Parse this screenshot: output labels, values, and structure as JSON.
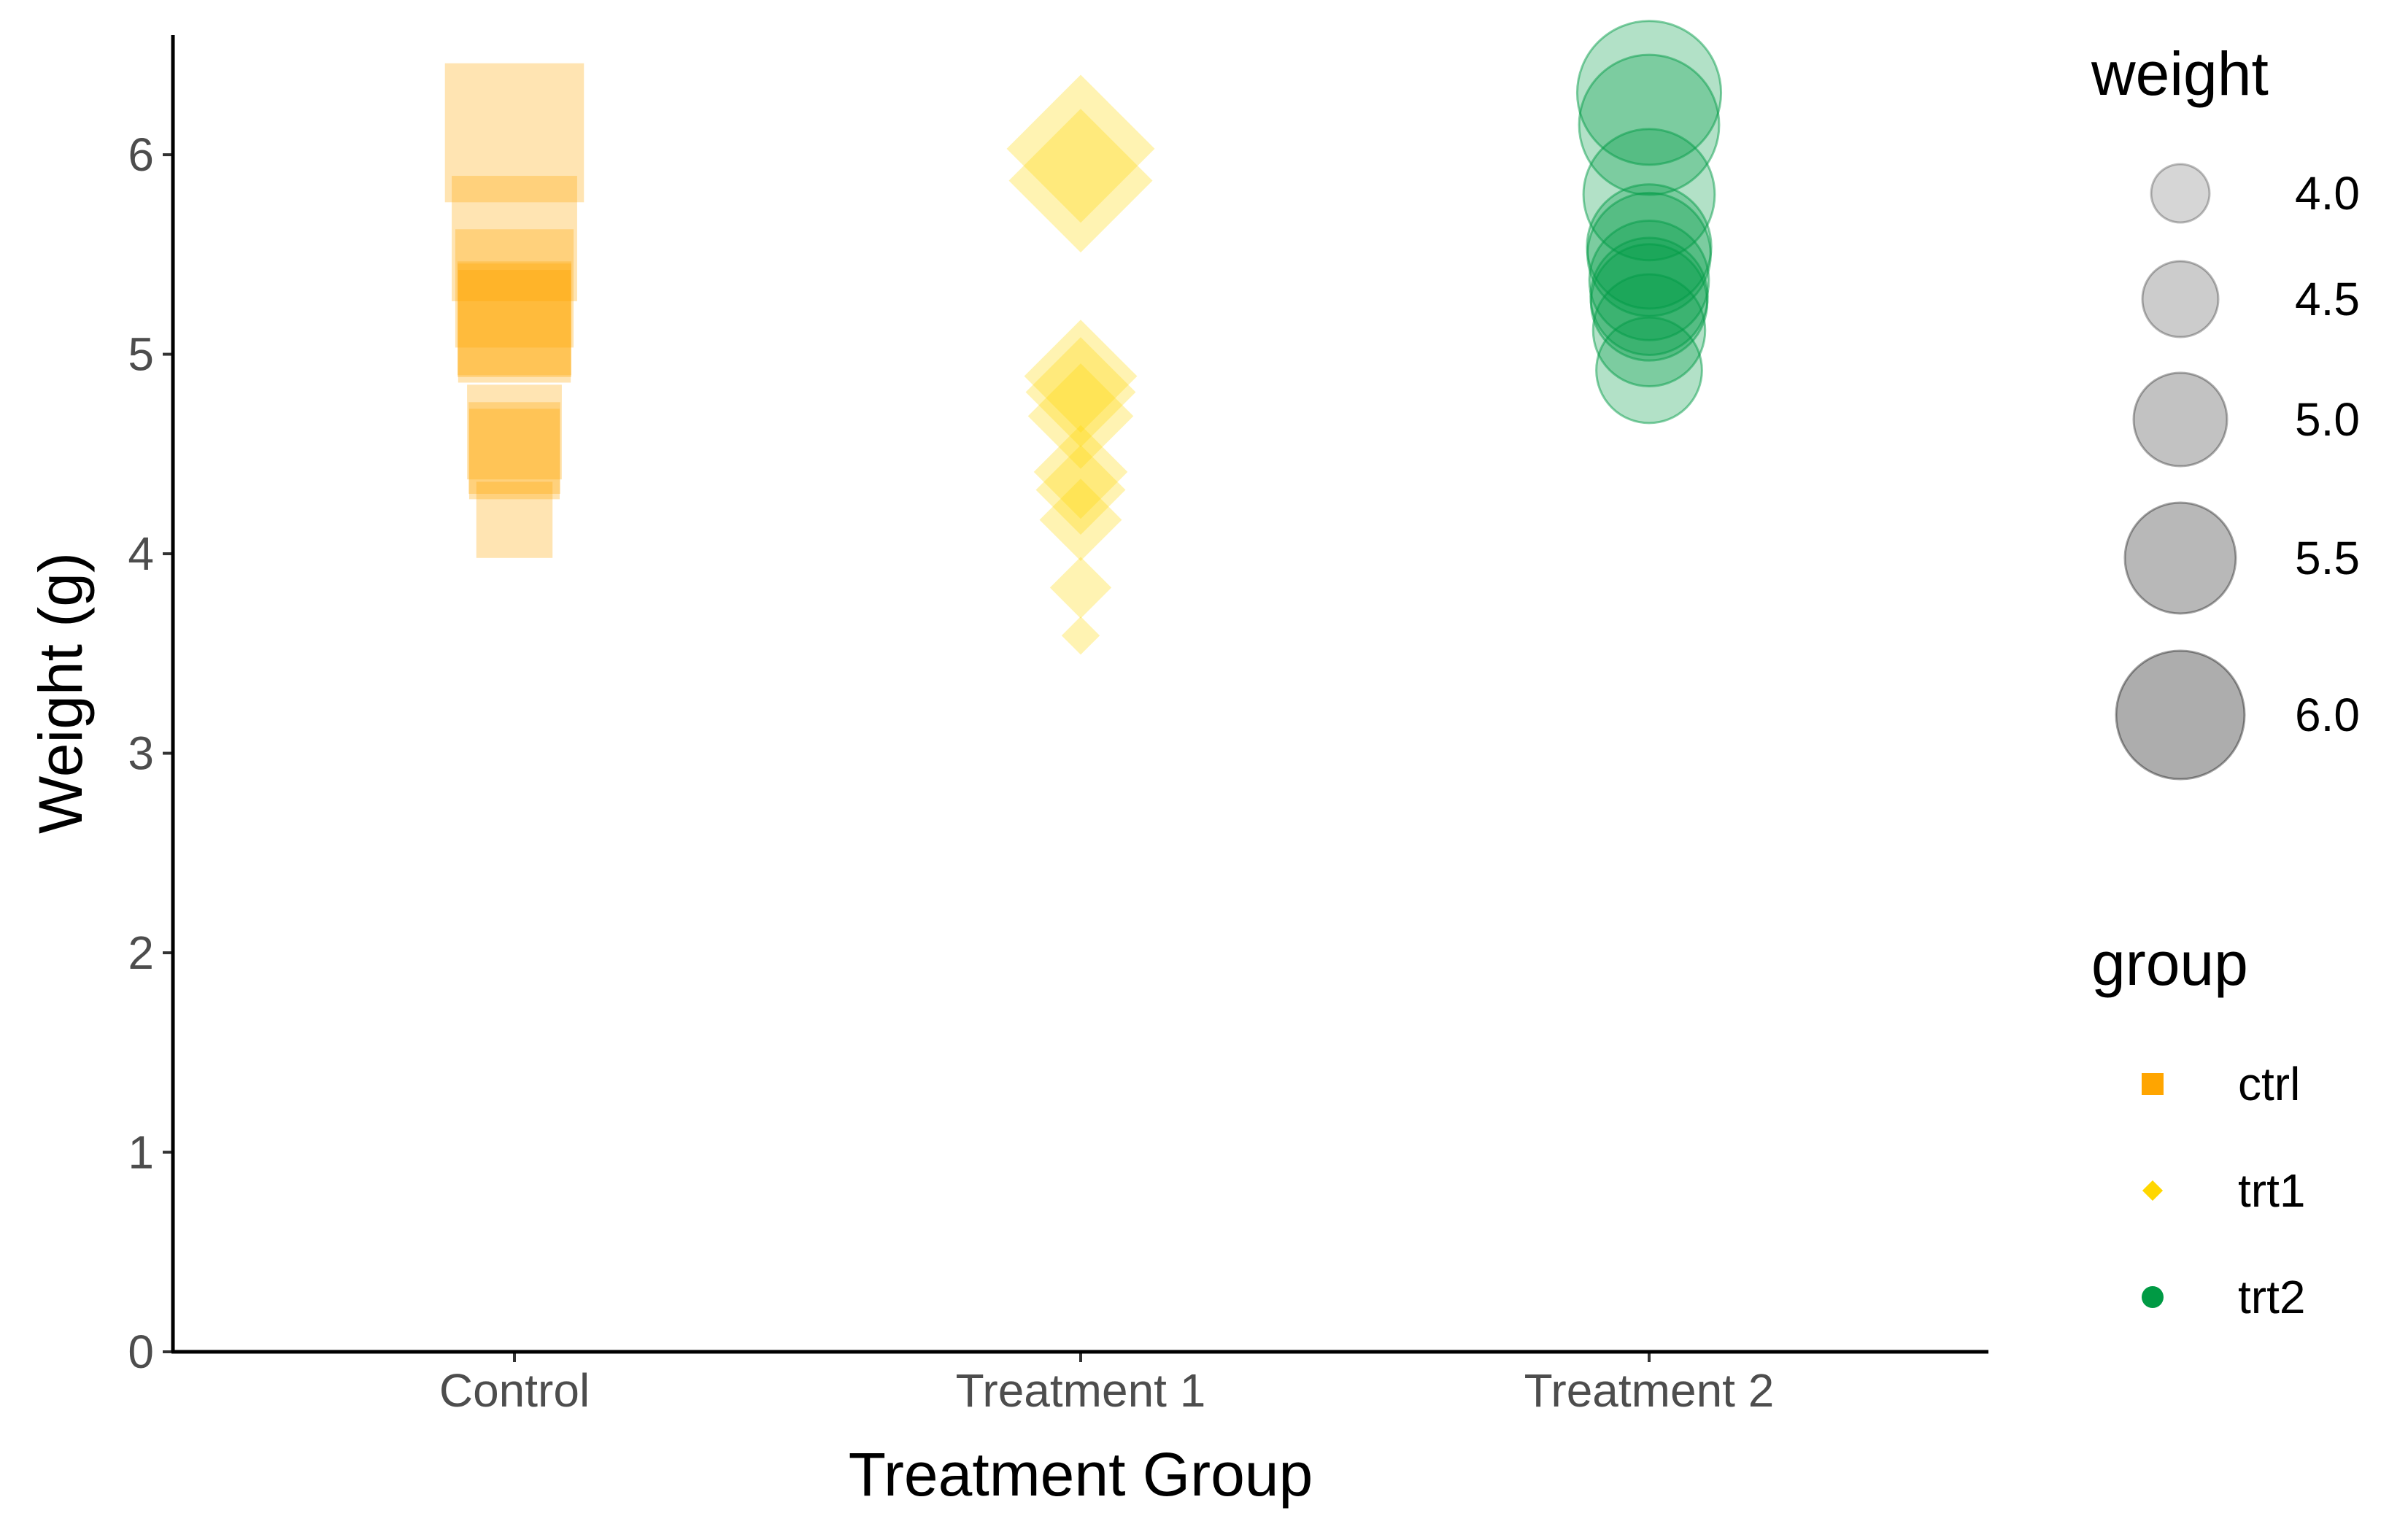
{
  "chart_data": {
    "type": "scatter",
    "title": "",
    "xlabel": "Treatment Group",
    "ylabel": "Weight (g)",
    "categories": [
      "Control",
      "Treatment 1",
      "Treatment 2"
    ],
    "ylim": [
      0,
      6.6
    ],
    "yticks": [
      "0",
      "1",
      "2",
      "3",
      "4",
      "5",
      "6"
    ],
    "grid": false,
    "point_alpha": 0.3,
    "series": [
      {
        "name": "ctrl",
        "category": "Control",
        "shape": "square",
        "color": "#FFA500",
        "values": [
          4.17,
          5.58,
          5.18,
          6.11,
          4.5,
          4.61,
          5.17,
          4.53,
          5.33,
          5.14
        ]
      },
      {
        "name": "trt1",
        "category": "Treatment 1",
        "shape": "diamond",
        "color": "#FFD700",
        "values": [
          4.81,
          4.17,
          4.41,
          3.59,
          5.87,
          3.83,
          6.03,
          4.89,
          4.32,
          4.69
        ]
      },
      {
        "name": "trt2",
        "category": "Treatment 2",
        "shape": "circle",
        "color": "#009A44",
        "values": [
          6.31,
          5.12,
          5.54,
          5.5,
          5.37,
          5.29,
          4.92,
          6.15,
          5.8,
          5.26
        ]
      }
    ],
    "legend": {
      "position": "right",
      "size": {
        "title": "weight",
        "entries": [
          {
            "label": "4.0",
            "value": 4.0
          },
          {
            "label": "4.5",
            "value": 4.5
          },
          {
            "label": "5.0",
            "value": 5.0
          },
          {
            "label": "5.5",
            "value": 5.5
          },
          {
            "label": "6.0",
            "value": 6.0
          }
        ]
      },
      "group": {
        "title": "group",
        "entries": [
          {
            "label": "ctrl",
            "shape": "square",
            "color": "#FFA500"
          },
          {
            "label": "trt1",
            "shape": "diamond",
            "color": "#FFD700"
          },
          {
            "label": "trt2",
            "shape": "circle",
            "color": "#009A44"
          }
        ]
      }
    }
  }
}
